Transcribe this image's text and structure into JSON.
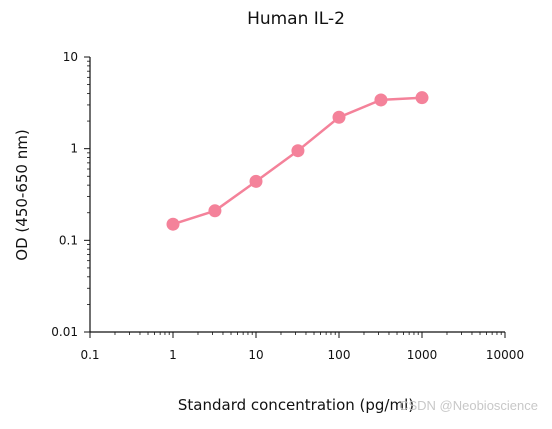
{
  "chart_data": {
    "type": "line",
    "title": "Human IL-2",
    "xlabel": "Standard concentration (pg/ml)",
    "ylabel": "OD (450-650 nm)",
    "x_scale": "log",
    "y_scale": "log",
    "xlim": [
      0.1,
      10000
    ],
    "ylim": [
      0.01,
      10
    ],
    "x_ticks": [
      0.1,
      1,
      10,
      100,
      1000,
      10000
    ],
    "x_tick_labels": [
      "0.1",
      "1",
      "10",
      "100",
      "1000",
      "10000"
    ],
    "y_ticks": [
      0.01,
      0.1,
      1,
      10
    ],
    "y_tick_labels": [
      "0.01",
      "0.1",
      "1",
      "10"
    ],
    "grid": false,
    "legend": "none",
    "series": [
      {
        "color": "#f4829a",
        "x": [
          1,
          3.2,
          10,
          32,
          100,
          320,
          1000
        ],
        "y": [
          0.15,
          0.21,
          0.44,
          0.95,
          2.2,
          3.4,
          3.6
        ]
      }
    ]
  },
  "watermark": "CSDN @Neobioscience"
}
